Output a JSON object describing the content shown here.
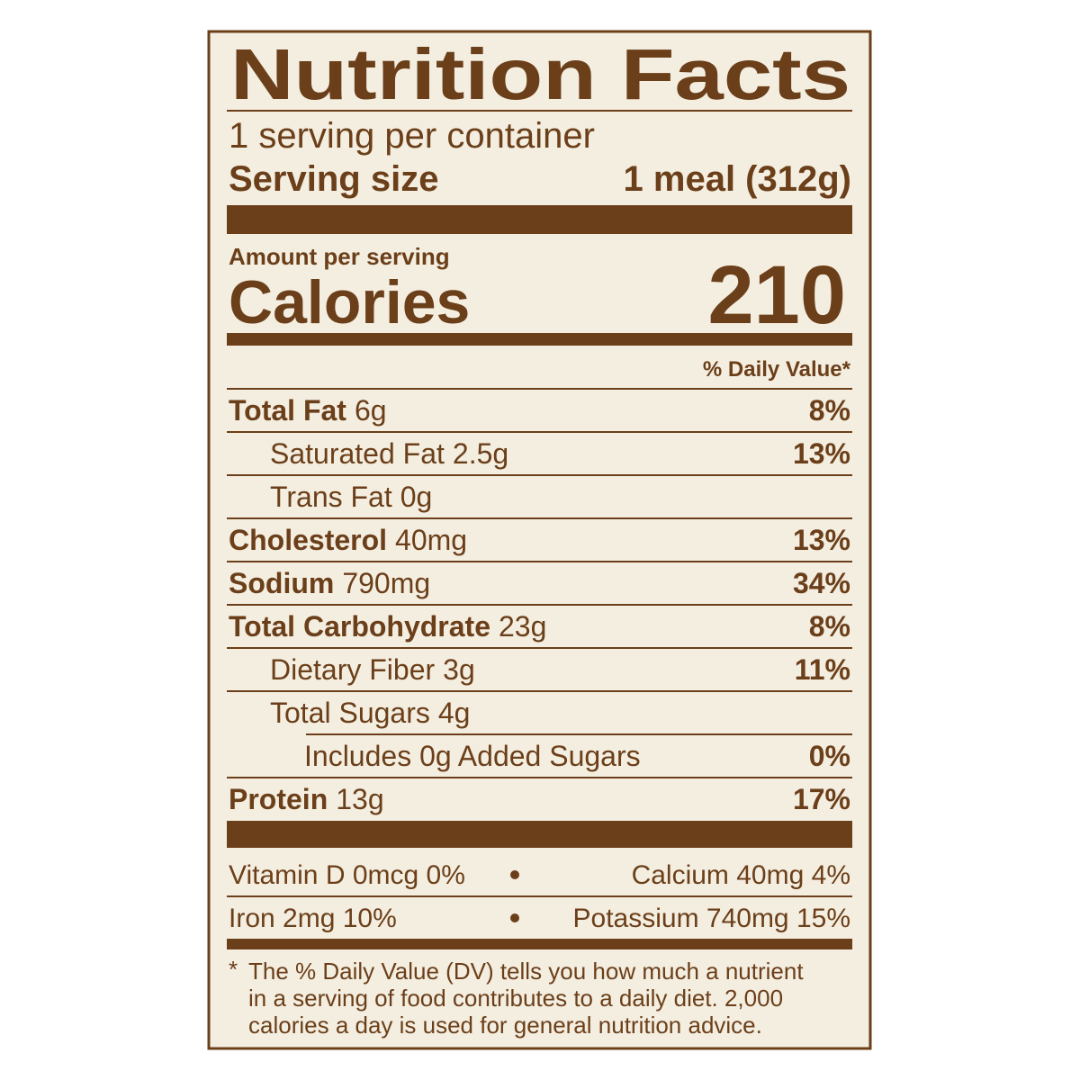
{
  "title": "Nutrition Facts",
  "servings": "1 serving per container",
  "serving_size": {
    "label": "Serving size",
    "value": "1 meal (312g)"
  },
  "amount_per_serving": "Amount per serving",
  "calories": {
    "label": "Calories",
    "value": "210"
  },
  "dv_header": "% Daily Value*",
  "nutrients": [
    {
      "name": "Total Fat",
      "amount": "6g",
      "dv": "8%"
    },
    {
      "name": "Saturated Fat",
      "amount": "2.5g",
      "dv": "13%"
    },
    {
      "name": "Trans Fat",
      "amount": "0g"
    },
    {
      "name": "Cholesterol",
      "amount": "40mg",
      "dv": "13%"
    },
    {
      "name": "Sodium",
      "amount": "790mg",
      "dv": "34%"
    },
    {
      "name": "Total Carbohydrate",
      "amount": "23g",
      "dv": "8%"
    },
    {
      "name": "Dietary Fiber",
      "amount": "3g",
      "dv": "11%"
    },
    {
      "name": "Total Sugars",
      "amount": "4g"
    },
    {
      "name": "Includes 0g Added Sugars",
      "dv": "0%"
    },
    {
      "name": "Protein",
      "amount": "13g",
      "dv": "17%"
    }
  ],
  "vitamins": [
    [
      "Vitamin D 0mcg 0%",
      "Calcium 40mg 4%"
    ],
    [
      "Iron 2mg 10%",
      "Potassium 740mg 15%"
    ]
  ],
  "footnote": {
    "marker": "*",
    "lines": [
      "The % Daily Value (DV) tells you how much a nutrient",
      "in a serving of food contributes to a daily diet. 2,000",
      "calories a day is used for general nutrition advice."
    ]
  }
}
